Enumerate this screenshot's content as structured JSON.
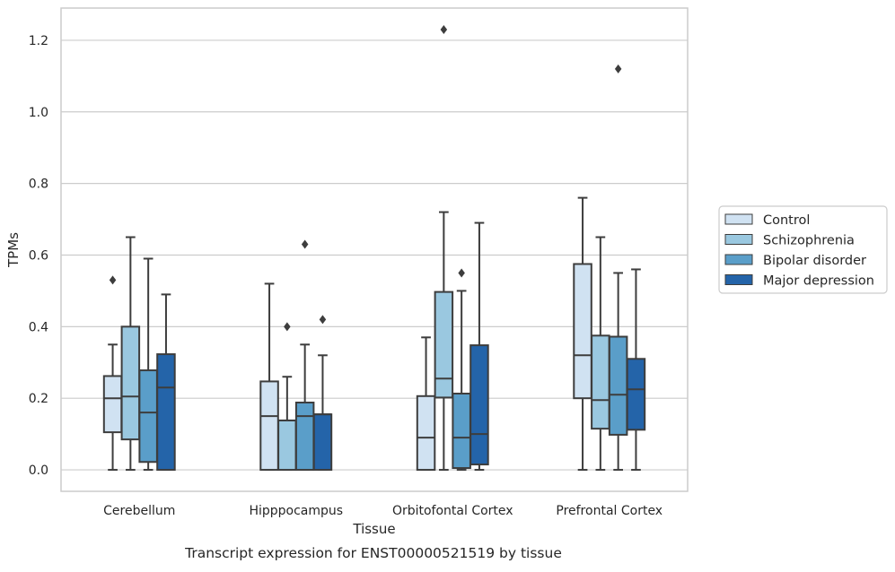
{
  "chart_data": {
    "type": "boxplot",
    "caption": "Transcript expression for ENST00000521519 by tissue",
    "xlabel": "Tissue",
    "ylabel": "TPMs",
    "ylim": [
      -0.06,
      1.29
    ],
    "yticks": [
      0.0,
      0.2,
      0.4,
      0.6,
      0.8,
      1.0,
      1.2
    ],
    "ytick_labels": [
      "0.0",
      "0.2",
      "0.4",
      "0.6",
      "0.8",
      "1.0",
      "1.2"
    ],
    "grid": true,
    "legend_position": "right",
    "categories": [
      "Cerebellum",
      "Hipppocampus",
      "Orbitofontal Cortex",
      "Prefrontal Cortex"
    ],
    "series": [
      {
        "name": "Control",
        "color": "#d0e2f2",
        "boxes": [
          {
            "whislo": 0.0,
            "q1": 0.105,
            "med": 0.2,
            "q3": 0.262,
            "whishi": 0.35,
            "fliers": [
              0.53
            ]
          },
          {
            "whislo": 0.0,
            "q1": 0.0,
            "med": 0.15,
            "q3": 0.247,
            "whishi": 0.52,
            "fliers": []
          },
          {
            "whislo": 0.0,
            "q1": 0.0,
            "med": 0.09,
            "q3": 0.206,
            "whishi": 0.37,
            "fliers": []
          },
          {
            "whislo": 0.0,
            "q1": 0.2,
            "med": 0.32,
            "q3": 0.575,
            "whishi": 0.76,
            "fliers": []
          }
        ]
      },
      {
        "name": "Schizophrenia",
        "color": "#9ac8e0",
        "boxes": [
          {
            "whislo": 0.0,
            "q1": 0.085,
            "med": 0.205,
            "q3": 0.4,
            "whishi": 0.65,
            "fliers": []
          },
          {
            "whislo": 0.0,
            "q1": 0.0,
            "med": 0.138,
            "q3": 0.138,
            "whishi": 0.26,
            "fliers": [
              0.4
            ]
          },
          {
            "whislo": 0.0,
            "q1": 0.202,
            "med": 0.255,
            "q3": 0.497,
            "whishi": 0.72,
            "fliers": [
              1.23
            ]
          },
          {
            "whislo": 0.0,
            "q1": 0.115,
            "med": 0.195,
            "q3": 0.375,
            "whishi": 0.65,
            "fliers": []
          }
        ]
      },
      {
        "name": "Bipolar disorder",
        "color": "#5a9ec9",
        "boxes": [
          {
            "whislo": 0.0,
            "q1": 0.022,
            "med": 0.16,
            "q3": 0.278,
            "whishi": 0.59,
            "fliers": []
          },
          {
            "whislo": 0.0,
            "q1": 0.0,
            "med": 0.15,
            "q3": 0.188,
            "whishi": 0.35,
            "fliers": [
              0.63
            ]
          },
          {
            "whislo": 0.0,
            "q1": 0.005,
            "med": 0.09,
            "q3": 0.213,
            "whishi": 0.5,
            "fliers": [
              0.55
            ]
          },
          {
            "whislo": 0.0,
            "q1": 0.098,
            "med": 0.21,
            "q3": 0.372,
            "whishi": 0.55,
            "fliers": [
              1.12
            ]
          }
        ]
      },
      {
        "name": "Major depression",
        "color": "#2464a9",
        "boxes": [
          {
            "whislo": 0.0,
            "q1": 0.0,
            "med": 0.23,
            "q3": 0.323,
            "whishi": 0.49,
            "fliers": []
          },
          {
            "whislo": 0.0,
            "q1": 0.0,
            "med": 0.155,
            "q3": 0.155,
            "whishi": 0.32,
            "fliers": [
              0.42
            ]
          },
          {
            "whislo": 0.0,
            "q1": 0.015,
            "med": 0.1,
            "q3": 0.348,
            "whishi": 0.69,
            "fliers": []
          },
          {
            "whislo": 0.0,
            "q1": 0.112,
            "med": 0.225,
            "q3": 0.31,
            "whishi": 0.56,
            "fliers": []
          }
        ]
      }
    ]
  }
}
